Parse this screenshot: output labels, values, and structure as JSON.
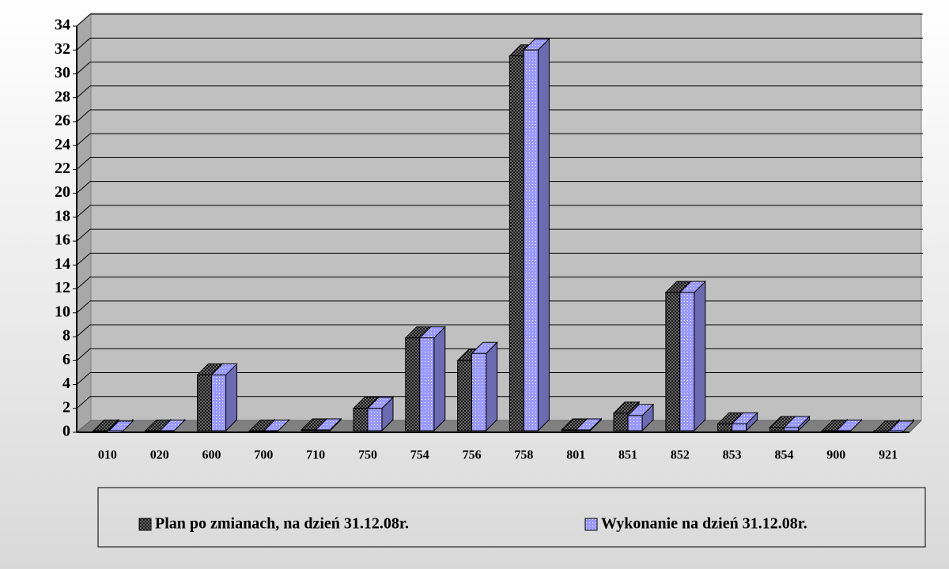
{
  "chart_data": {
    "type": "bar3d",
    "categories": [
      "010",
      "020",
      "600",
      "700",
      "710",
      "750",
      "754",
      "756",
      "758",
      "801",
      "851",
      "852",
      "853",
      "854",
      "900",
      "921"
    ],
    "series": [
      {
        "name": "Plan po zmianach, na dzień 31.12.08r.",
        "color": "#808080",
        "values": [
          0.1,
          0.1,
          4.8,
          0.1,
          0.2,
          2.0,
          7.9,
          6.0,
          31.5,
          0.2,
          1.6,
          11.7,
          0.7,
          0.4,
          0.1,
          0.0
        ]
      },
      {
        "name": "Wykonanie na dzień 31.12.08r.",
        "color": "#9999ff",
        "values": [
          0.0,
          0.1,
          4.8,
          0.1,
          0.2,
          2.0,
          7.9,
          6.6,
          32.0,
          0.2,
          1.4,
          11.7,
          0.7,
          0.4,
          0.1,
          0.0
        ]
      }
    ],
    "ylim": [
      0,
      34
    ],
    "yticks": [
      0,
      2,
      4,
      6,
      8,
      10,
      12,
      14,
      16,
      18,
      20,
      22,
      24,
      26,
      28,
      30,
      32,
      34
    ],
    "grid": true,
    "legend": "bottom"
  }
}
